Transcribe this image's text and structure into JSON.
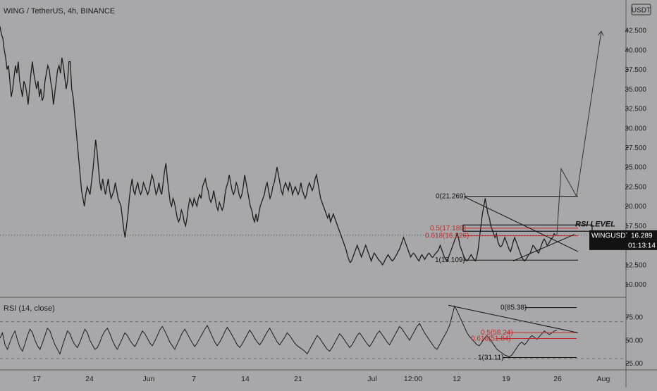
{
  "chart_data": {
    "type": "line",
    "title": "WING / TetherUS, 4h, BINANCE",
    "currency_label": "USDT",
    "x_ticks": [
      "17",
      "24",
      "Jun",
      "7",
      "14",
      "21",
      "Jul",
      "12:00",
      "12",
      "19",
      "26",
      "Aug"
    ],
    "price_panel": {
      "ylim": [
        8.8,
        45.3
      ],
      "y_ticks": [
        "42.500",
        "40.000",
        "37.500",
        "35.000",
        "32.500",
        "30.000",
        "27.500",
        "25.000",
        "22.500",
        "20.000",
        "17.500",
        "15.000",
        "12.500",
        "10.000"
      ],
      "series": [
        {
          "values": [
            43.0,
            42.0,
            41.5,
            40.0,
            39.0,
            37.5,
            38.0,
            36.0,
            34.0,
            35.0,
            36.5,
            38.0,
            37.0,
            38.5,
            36.0,
            35.0,
            34.0,
            36.0,
            35.5,
            34.5,
            33.0,
            35.0,
            37.0,
            38.5,
            37.0,
            36.0,
            35.0,
            36.0,
            34.0,
            35.0,
            33.5,
            34.0,
            36.0,
            37.0,
            38.0,
            37.5,
            36.0,
            35.0,
            33.0,
            34.5,
            36.0,
            37.5,
            38.0,
            37.0,
            39.0,
            38.0,
            36.5,
            35.0,
            36.0,
            38.5,
            38.5,
            35.0,
            34.0,
            32.0,
            30.0,
            28.0,
            26.0,
            24.0,
            22.0,
            21.0,
            20.0,
            21.5,
            22.5,
            22.0,
            21.5,
            23.0,
            24.5,
            26.5,
            28.5,
            27.0,
            25.0,
            23.0,
            22.0,
            23.5,
            22.5,
            21.5,
            22.5,
            23.5,
            22.0,
            21.0,
            21.5,
            22.0,
            23.0,
            22.0,
            21.0,
            20.5,
            20.0,
            18.5,
            17.0,
            16.0,
            17.5,
            19.0,
            21.0,
            22.5,
            23.5,
            22.0,
            21.5,
            22.5,
            23.0,
            22.0,
            21.5,
            22.0,
            23.0,
            22.5,
            22.0,
            21.5,
            22.0,
            23.0,
            24.0,
            23.5,
            22.5,
            21.5,
            22.0,
            23.0,
            22.0,
            21.5,
            23.0,
            24.5,
            25.5,
            23.5,
            22.0,
            20.5,
            20.0,
            21.0,
            20.5,
            19.5,
            18.5,
            18.0,
            18.5,
            19.5,
            19.0,
            18.0,
            17.5,
            18.5,
            20.0,
            21.0,
            20.5,
            20.0,
            21.0,
            20.5,
            20.0,
            21.0,
            21.5,
            21.0,
            22.5,
            23.0,
            23.5,
            22.5,
            22.0,
            21.0,
            20.5,
            21.0,
            22.0,
            21.0,
            20.0,
            19.5,
            20.5,
            20.0,
            19.5,
            20.0,
            21.5,
            22.5,
            23.0,
            24.0,
            23.0,
            22.0,
            21.5,
            22.0,
            23.0,
            22.5,
            21.5,
            21.0,
            21.5,
            22.5,
            24.0,
            23.0,
            22.0,
            21.0,
            20.0,
            19.5,
            18.5,
            18.0,
            19.0,
            18.0,
            19.0,
            20.0,
            20.5,
            21.0,
            21.5,
            22.5,
            23.0,
            22.0,
            21.0,
            21.5,
            22.5,
            23.0,
            24.0,
            25.0,
            24.0,
            23.0,
            22.0,
            21.5,
            22.5,
            23.0,
            22.5,
            22.0,
            23.0,
            22.5,
            21.5,
            22.0,
            22.5,
            22.0,
            21.5,
            22.0,
            23.0,
            22.0,
            21.5,
            21.0,
            21.5,
            22.5,
            23.0,
            22.5,
            22.0,
            22.5,
            23.5,
            24.0,
            23.0,
            22.0,
            21.0,
            20.5,
            20.0,
            19.5,
            19.0,
            18.5,
            19.0,
            18.0,
            18.5,
            19.0,
            18.5,
            18.0,
            17.5,
            17.0,
            16.5,
            16.0,
            15.5,
            15.0,
            14.5,
            13.8,
            13.2,
            12.8,
            13.0,
            13.5,
            14.0,
            14.5,
            15.0,
            14.5,
            14.0,
            13.5,
            14.0,
            14.5,
            15.0,
            14.5,
            14.0,
            13.5,
            13.0,
            13.5,
            14.0,
            13.8,
            13.5,
            13.2,
            13.0,
            12.8,
            12.5,
            12.8,
            13.2,
            13.5,
            13.8,
            13.5,
            13.2,
            13.0,
            13.2,
            13.5,
            13.8,
            14.2,
            14.5,
            15.0,
            15.5,
            16.0,
            15.5,
            15.0,
            14.5,
            14.0,
            13.5,
            13.8,
            14.0,
            13.8,
            13.5,
            13.2,
            13.0,
            13.5,
            13.8,
            13.5,
            13.2,
            13.5,
            13.8,
            14.0,
            13.8,
            13.5,
            13.5,
            13.8,
            14.0,
            14.2,
            14.5,
            15.0,
            14.5,
            14.0,
            13.5,
            13.2,
            13.0,
            13.5,
            14.0,
            14.5,
            15.0,
            15.5,
            16.0,
            16.5,
            16.0,
            15.0,
            14.5,
            14.0,
            13.5,
            13.2,
            13.0,
            13.2,
            13.5,
            13.8,
            13.5,
            13.2,
            13.0,
            13.5,
            14.5,
            16.0,
            17.5,
            19.0,
            20.0,
            21.0,
            20.0,
            19.0,
            18.5,
            17.5,
            17.0,
            16.5,
            16.0,
            16.5,
            15.5,
            15.0,
            14.8,
            15.0,
            15.5,
            16.0,
            15.5,
            15.0,
            14.5,
            14.2,
            14.8,
            15.5,
            16.0,
            15.5,
            15.0,
            14.5,
            14.0,
            13.5,
            13.2,
            13.0,
            13.2,
            13.5,
            13.8,
            14.0,
            14.5,
            15.0,
            14.8,
            14.5,
            14.2,
            14.0,
            14.5,
            15.0,
            15.5,
            15.8,
            15.5,
            15.0,
            15.2,
            15.5,
            15.8,
            16.0,
            16.5,
            16.3
          ],
          "line_color": "#1c1c1c"
        }
      ],
      "last_price_label": "WINGUSDT",
      "last_price": "16.289",
      "countdown": "01:13:14",
      "fib_levels": [
        {
          "label": "0(21.269)",
          "value": 21.269,
          "color": "#111111"
        },
        {
          "label": "0.5(17.189)",
          "value": 17.189,
          "color": "#c62828"
        },
        {
          "label": "0.618(16.226)",
          "value": 16.226,
          "color": "#c62828"
        },
        {
          "label": "1(13.109)",
          "value": 13.109,
          "color": "#111111"
        }
      ],
      "annotation": "RSI LEVEL",
      "projection_values": [
        16.289,
        24.8,
        21.269,
        42.4
      ]
    },
    "rsi_panel": {
      "title": "RSI (14, close)",
      "ylim": [
        18.5,
        92
      ],
      "y_ticks": [
        "75.00",
        "50.00",
        "25.00"
      ],
      "reference_lines": [
        70,
        30
      ],
      "series": [
        {
          "values": [
            52,
            58,
            45,
            40,
            48,
            55,
            60,
            50,
            42,
            38,
            46,
            55,
            62,
            58,
            50,
            44,
            40,
            47,
            55,
            63,
            60,
            52,
            45,
            40,
            35,
            44,
            52,
            60,
            57,
            50,
            45,
            42,
            48,
            55,
            62,
            58,
            50,
            45,
            40,
            42,
            48,
            55,
            60,
            63,
            57,
            50,
            44,
            40,
            46,
            52,
            58,
            55,
            50,
            46,
            43,
            48,
            54,
            60,
            57,
            52,
            47,
            44,
            49,
            55,
            61,
            65,
            60,
            54,
            48,
            44,
            40,
            46,
            52,
            58,
            62,
            57,
            52,
            47,
            43,
            47,
            52,
            57,
            62,
            66,
            60,
            54,
            48,
            44,
            48,
            53,
            59,
            64,
            60,
            55,
            50,
            45,
            42,
            46,
            51,
            56,
            61,
            57,
            52,
            48,
            45,
            49,
            54,
            59,
            63,
            58,
            53,
            48,
            45,
            49,
            53,
            58,
            55,
            51,
            47,
            44,
            42,
            40,
            38,
            35,
            40,
            45,
            50,
            55,
            52,
            48,
            44,
            40,
            38,
            42,
            47,
            52,
            57,
            54,
            50,
            46,
            42,
            45,
            50,
            55,
            58,
            54,
            50,
            46,
            43,
            47,
            52,
            57,
            60,
            56,
            52,
            48,
            45,
            50,
            55,
            60,
            65,
            62,
            58,
            54,
            50,
            55,
            60,
            65,
            68,
            63,
            58,
            54,
            50,
            46,
            42,
            40,
            45,
            50,
            55,
            60,
            66,
            76,
            87,
            82,
            76,
            70,
            64,
            58,
            54,
            51,
            48,
            45,
            44,
            48,
            52,
            55,
            52,
            48,
            44,
            40,
            38,
            36,
            34,
            33,
            32,
            34,
            38,
            42,
            46,
            48,
            45,
            48,
            52,
            55,
            53,
            51,
            54,
            57,
            60,
            58,
            56,
            58,
            60,
            61
          ],
          "line_color": "#1c1c1c"
        }
      ],
      "fib_levels": [
        {
          "label": "0(85.38)",
          "value": 85.38,
          "color": "#111111"
        },
        {
          "label": "0.5(58.24)",
          "value": 58.24,
          "color": "#c62828"
        },
        {
          "label": "0.618(51.84)",
          "value": 51.84,
          "color": "#c62828"
        },
        {
          "label": "1(31.11)",
          "value": 31.11,
          "color": "#111111"
        }
      ]
    }
  }
}
